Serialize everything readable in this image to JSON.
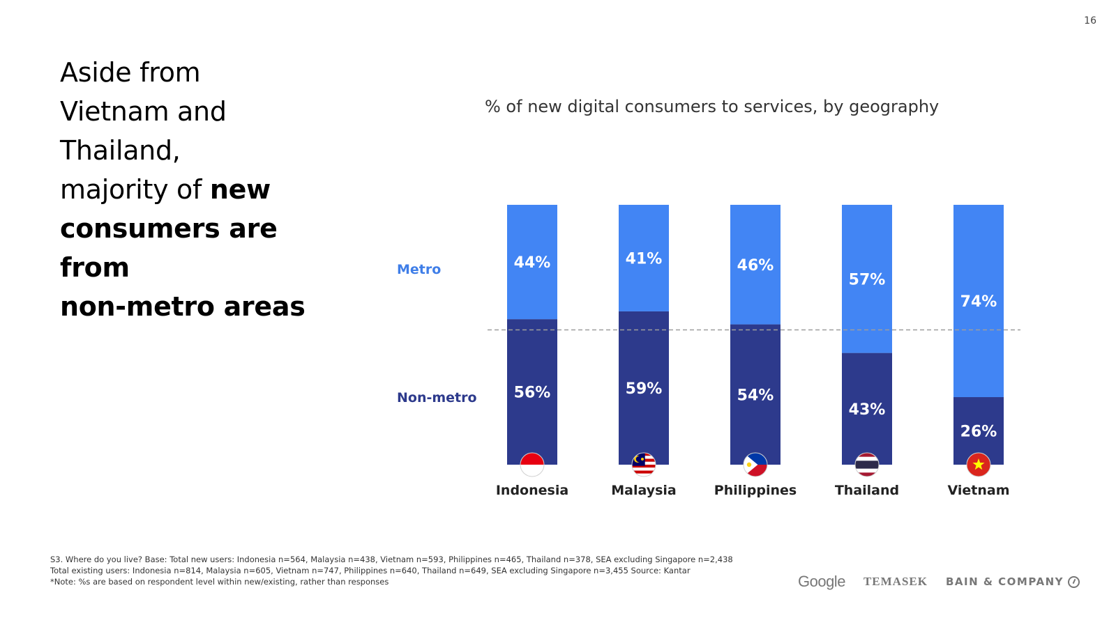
{
  "page": {
    "number": "16"
  },
  "headline": {
    "line1": "Aside from",
    "line2": "Vietnam and Thailand,",
    "line3_regular": "majority of ",
    "line3_bold": "new",
    "line4": "consumers are from",
    "line5": "non-metro areas"
  },
  "footnote": {
    "line1": "S3. Where do you live? Base: Total new users: Indonesia n=564, Malaysia n=438, Vietnam n=593, Philippines n=465, Thailand n=378, SEA excluding Singapore  n=2,438",
    "line2": "Total existing  users: Indonesia n=814, Malaysia n=605, Vietnam n=747, Philippines n=640, Thailand n=649, SEA excluding Singapore  n=3,455 Source: Kantar",
    "line3": "*Note: %s are based on respondent level within new/existing, rather than responses"
  },
  "logos": {
    "google": "Google",
    "temasek": "TEMASEK",
    "bain": "BAIN & COMPANY"
  },
  "colors": {
    "metro": "#4285f4",
    "non_metro": "#2d3a8c",
    "metro_text": "#3f7ee8",
    "non_metro_text": "#2d3a8c",
    "reference_line": "#9e9e9e"
  },
  "chart_data": {
    "type": "bar",
    "stacked": true,
    "title": "% of new digital consumers to services, by geography",
    "categories": [
      "Indonesia",
      "Malaysia",
      "Philippines",
      "Thailand",
      "Vietnam"
    ],
    "series": [
      {
        "name": "Non-metro",
        "values": [
          56,
          59,
          54,
          43,
          26
        ],
        "labels": [
          "56%",
          "59%",
          "54%",
          "43%",
          "26%"
        ]
      },
      {
        "name": "Metro",
        "values": [
          44,
          41,
          46,
          57,
          74
        ],
        "labels": [
          "44%",
          "41%",
          "46%",
          "57%",
          "74%"
        ]
      }
    ],
    "ylim": [
      0,
      100
    ],
    "reference_line": 50,
    "xlabel": "",
    "ylabel": "",
    "flags": [
      "indonesia-flag-icon",
      "malaysia-flag-icon",
      "philippines-flag-icon",
      "thailand-flag-icon",
      "vietnam-flag-icon"
    ]
  }
}
